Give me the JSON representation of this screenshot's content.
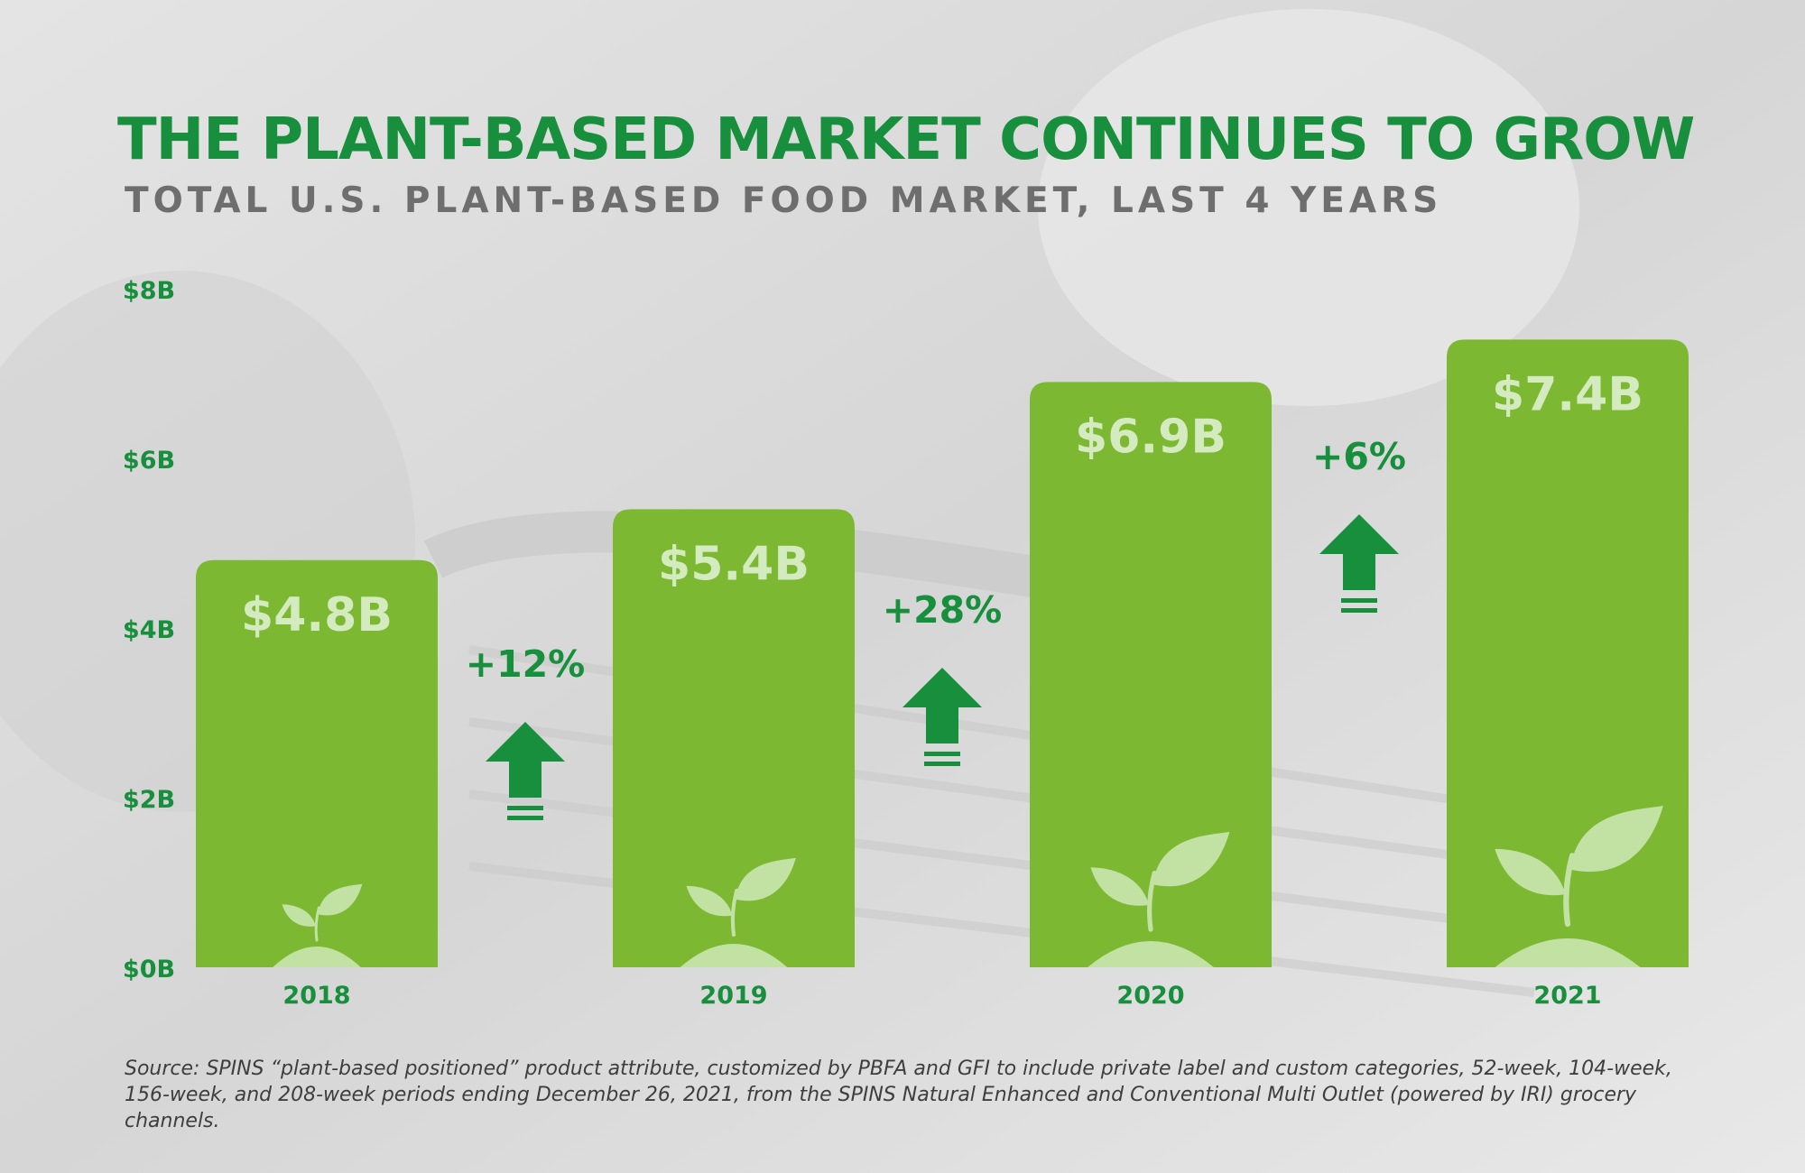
{
  "header": {
    "title": "THE PLANT-BASED MARKET CONTINUES TO GROW",
    "subtitle": "TOTAL U.S. PLANT-BASED FOOD MARKET, LAST 4 YEARS"
  },
  "chart_data": {
    "type": "bar",
    "categories": [
      "2018",
      "2019",
      "2020",
      "2021"
    ],
    "values": [
      4.8,
      5.4,
      6.9,
      7.4
    ],
    "value_labels": [
      "$4.8B",
      "$5.4B",
      "$6.9B",
      "$7.4B"
    ],
    "growth_labels": [
      "+12%",
      "+28%",
      "+6%"
    ],
    "ylim": [
      0,
      8
    ],
    "yticks": [
      0,
      2,
      4,
      6,
      8
    ],
    "ytick_labels": [
      "$0B",
      "$2B",
      "$4B",
      "$6B",
      "$8B"
    ],
    "grid": false,
    "colors": {
      "bar": "#7cb832",
      "bar_label": "#d4ebc0",
      "accent": "#178f3c",
      "growth_text": "#178f3c",
      "arrow": "#178f3c",
      "sprout": "#c1e2a3"
    }
  },
  "footer": {
    "source": "Source: SPINS “plant-based positioned” product attribute, customized by PBFA and GFI to include private label and custom categories, 52-week, 104-week, 156-week, and 208-week periods ending December 26, 2021, from the SPINS Natural Enhanced and Conventional Multi Outlet (powered by IRI) grocery channels."
  }
}
